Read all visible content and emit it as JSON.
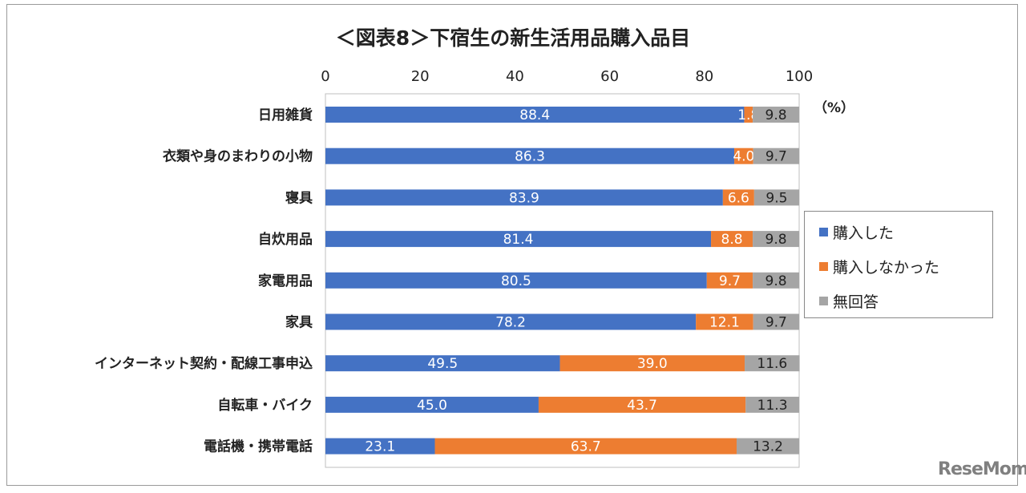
{
  "colors": {
    "purchased": "#4472C4",
    "not_purchased": "#ED7D31",
    "no_answer": "#A5A5A5"
  },
  "logo": "ReseMom",
  "chart_data": {
    "type": "bar",
    "stacked": true,
    "orientation": "horizontal",
    "title": "＜図表8＞下宿生の新生活用品購入品目",
    "unit_label": "（%）",
    "xlim": [
      0,
      100
    ],
    "xticks": [
      "0",
      "20",
      "40",
      "60",
      "80",
      "100"
    ],
    "legend_position": "right",
    "categories": [
      "日用雑貨",
      "衣類や身のまわりの小物",
      "寝具",
      "自炊用品",
      "家電用品",
      "家具",
      "インターネット契約・配線工事申込",
      "自転車・バイク",
      "電話機・携帯電話"
    ],
    "series": [
      {
        "name": "購入した",
        "values": [
          88.4,
          86.3,
          83.9,
          81.4,
          80.5,
          78.2,
          49.5,
          45.0,
          23.1
        ],
        "labels": [
          "88.4",
          "86.3",
          "83.9",
          "81.4",
          "80.5",
          "78.2",
          "49.5",
          "45.0",
          "23.1"
        ]
      },
      {
        "name": "購入しなかった",
        "values": [
          1.8,
          4.0,
          6.6,
          8.8,
          9.7,
          12.1,
          39.0,
          43.7,
          63.7
        ],
        "labels": [
          "1.8",
          "4.0",
          "6.6",
          "8.8",
          "9.7",
          "12.1",
          "39.0",
          "43.7",
          "63.7"
        ]
      },
      {
        "name": "無回答",
        "values": [
          9.8,
          9.7,
          9.5,
          9.8,
          9.8,
          9.7,
          11.6,
          11.3,
          13.2
        ],
        "labels": [
          "9.8",
          "9.7",
          "9.5",
          "9.8",
          "9.8",
          "9.7",
          "11.6",
          "11.3",
          "13.2"
        ]
      }
    ]
  }
}
